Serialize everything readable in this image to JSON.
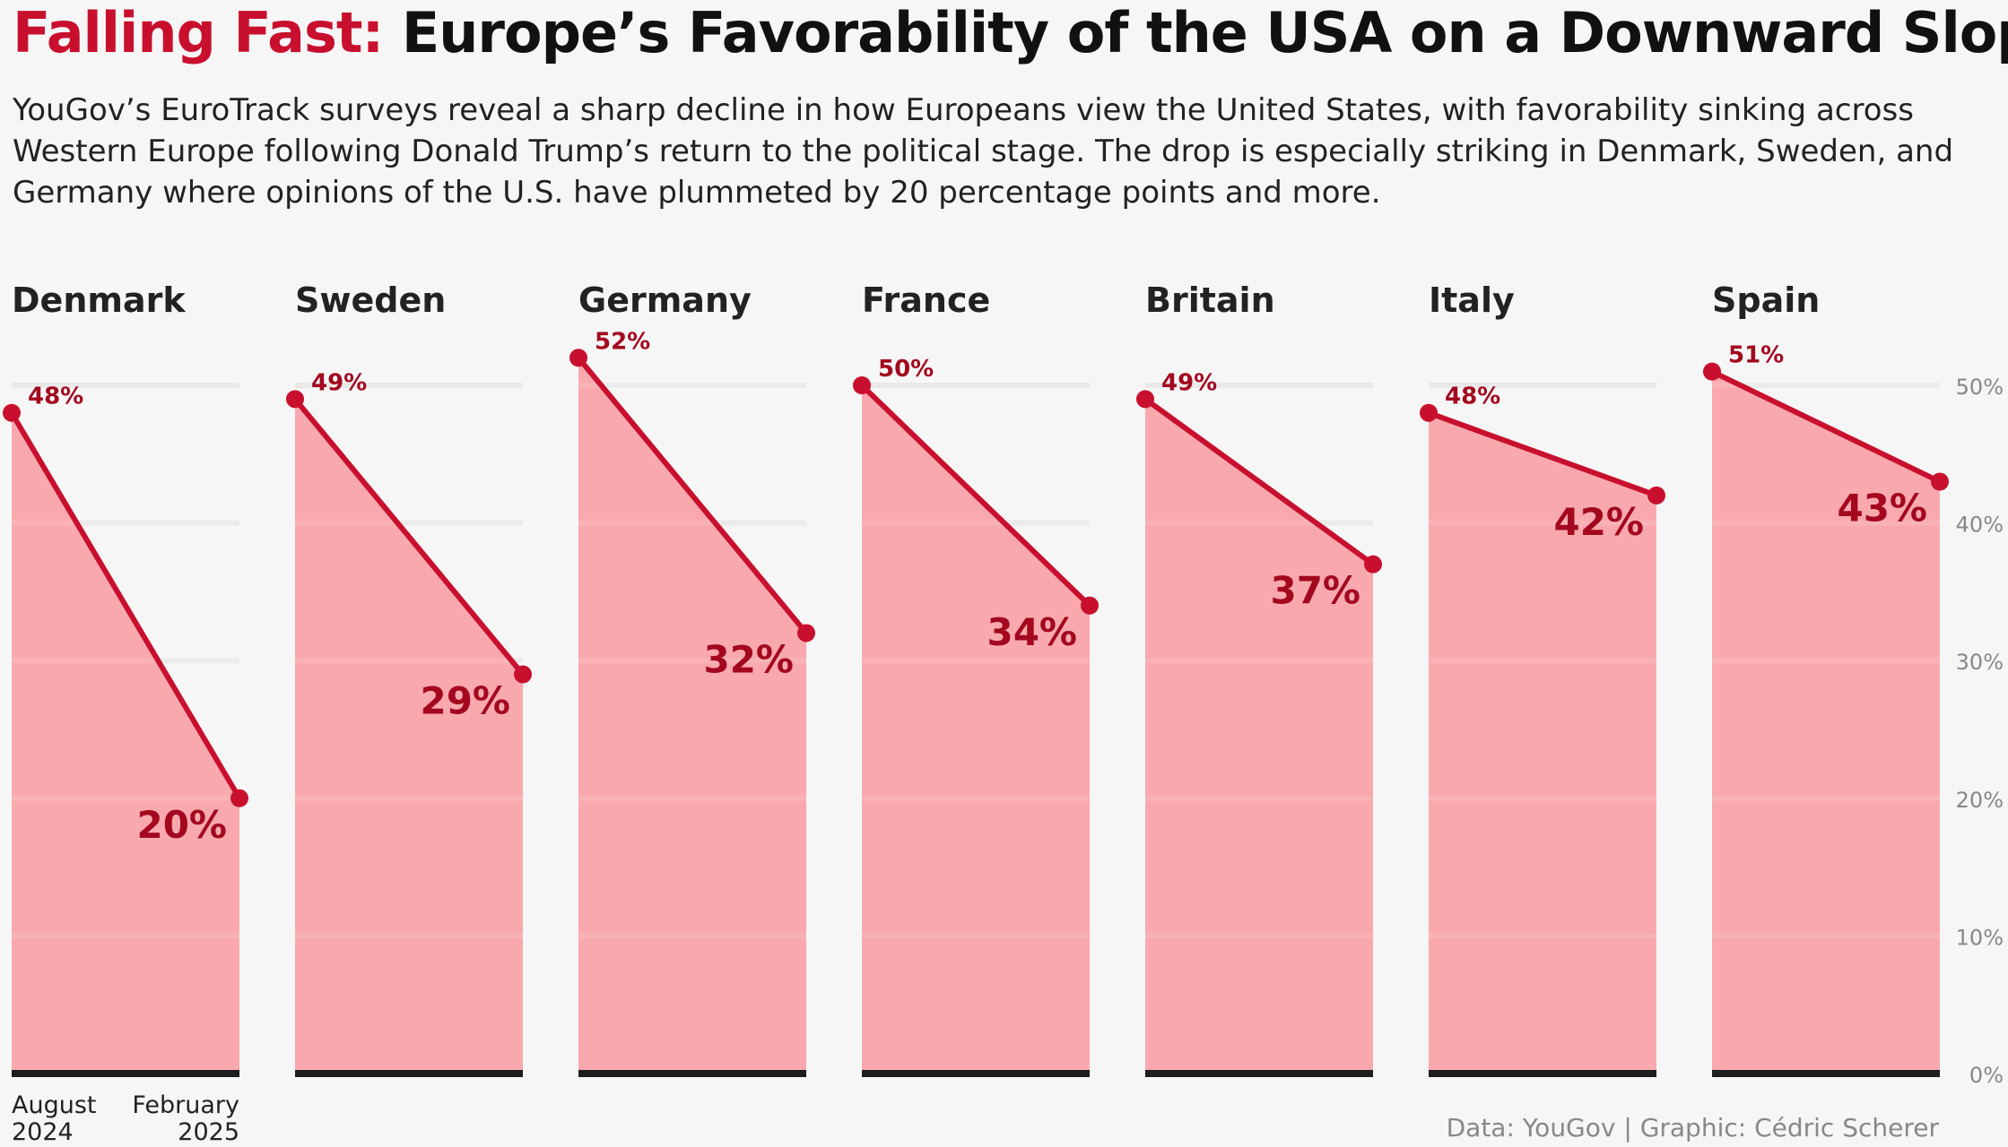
{
  "header": {
    "title_highlight": "Falling Fast:",
    "title_rest": "Europe’s Favorability of the USA on a Downward Slope",
    "subtitle": "YouGov’s EuroTrack surveys reveal a sharp decline in how Europeans view the United States, with favorability sinking across Western Europe following Donald Trump’s return to the political stage. The drop is especially striking in Denmark, Sweden, and Germany where opinions of the U.S. have plummeted by 20 percentage points and more."
  },
  "caption": "Data: YouGov | Graphic: Cédric Scherer",
  "colors": {
    "accent": "#c8102e",
    "label_dark": "#a3081f",
    "area": "#f9a9ae",
    "baseline": "#1e1e1e",
    "grid": "#e9e9e9",
    "axis_text": "#888888"
  },
  "chart_data": {
    "type": "area",
    "title": "Europe’s Favorability of the USA on a Downward Slope",
    "x_labels": {
      "start_line1": "August",
      "start_line2": "2024",
      "end_line1": "February",
      "end_line2": "2025"
    },
    "ylim": [
      0,
      52
    ],
    "y_ticks": [
      0,
      10,
      20,
      30,
      40,
      50
    ],
    "y_tick_labels": [
      "0%",
      "10%",
      "20%",
      "30%",
      "40%",
      "50%"
    ],
    "series": [
      {
        "name": "Denmark",
        "values": [
          48,
          20
        ],
        "start_label": "48%",
        "end_label": "20%"
      },
      {
        "name": "Sweden",
        "values": [
          49,
          29
        ],
        "start_label": "49%",
        "end_label": "29%"
      },
      {
        "name": "Germany",
        "values": [
          52,
          32
        ],
        "start_label": "52%",
        "end_label": "32%"
      },
      {
        "name": "France",
        "values": [
          50,
          34
        ],
        "start_label": "50%",
        "end_label": "34%"
      },
      {
        "name": "Britain",
        "values": [
          49,
          37
        ],
        "start_label": "49%",
        "end_label": "37%"
      },
      {
        "name": "Italy",
        "values": [
          48,
          42
        ],
        "start_label": "48%",
        "end_label": "42%"
      },
      {
        "name": "Spain",
        "values": [
          51,
          43
        ],
        "start_label": "51%",
        "end_label": "43%"
      }
    ]
  }
}
